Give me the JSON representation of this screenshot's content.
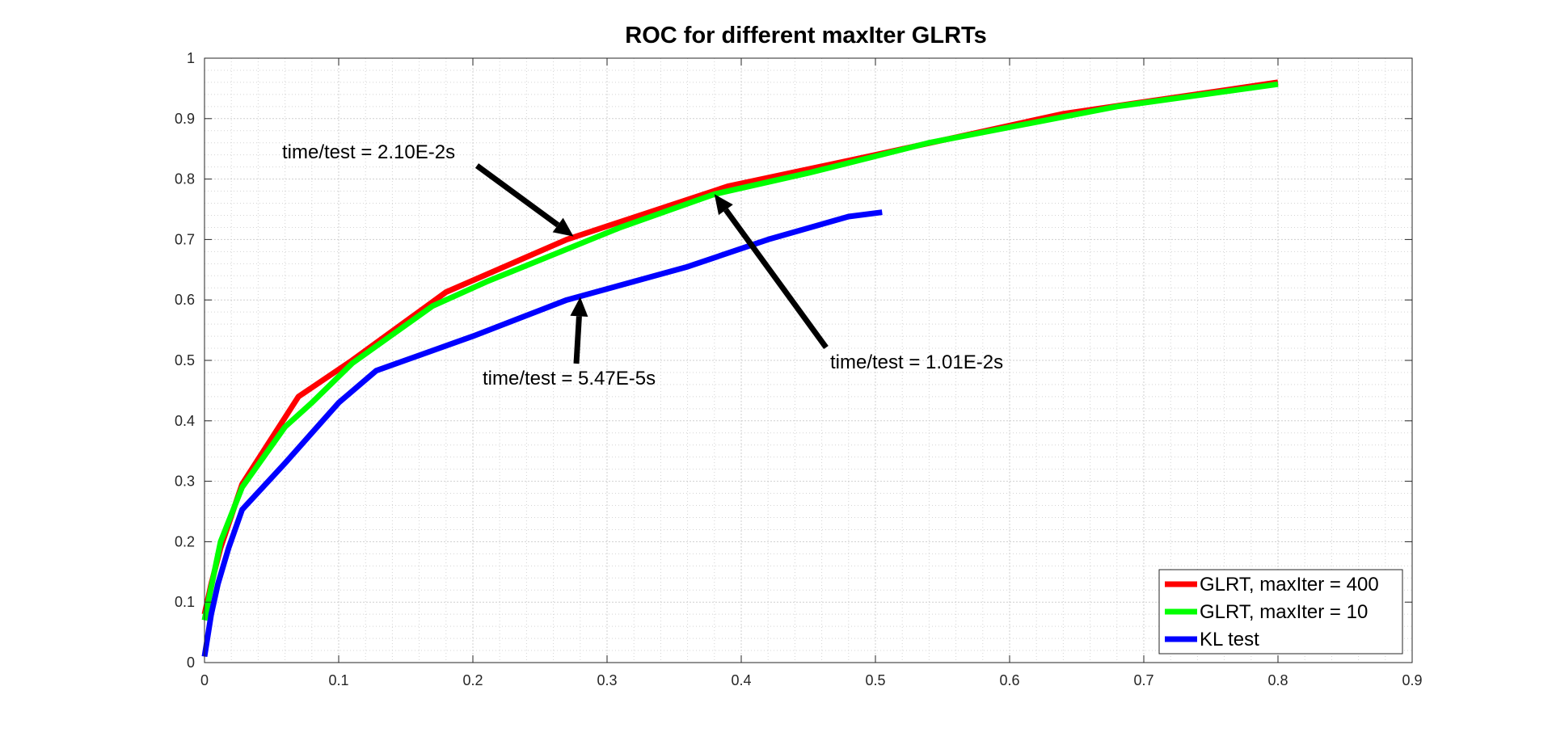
{
  "chart_data": {
    "type": "line",
    "title": "ROC for different maxIter GLRTs",
    "xlabel": "",
    "ylabel": "",
    "xlim": [
      0,
      0.9
    ],
    "ylim": [
      0,
      1
    ],
    "x_ticks": [
      "0",
      "0.1",
      "0.2",
      "0.3",
      "0.4",
      "0.5",
      "0.6",
      "0.7",
      "0.8",
      "0.9"
    ],
    "y_ticks": [
      "0",
      "0.1",
      "0.2",
      "0.3",
      "0.4",
      "0.5",
      "0.6",
      "0.7",
      "0.8",
      "0.9",
      "1"
    ],
    "grid": true,
    "minor_grid": true,
    "legend_position": "bottom-right",
    "series": [
      {
        "name": "GLRT, maxIter = 400",
        "color": "#ff0000",
        "points": [
          [
            0,
            0.08
          ],
          [
            0.005,
            0.13
          ],
          [
            0.012,
            0.19
          ],
          [
            0.028,
            0.295
          ],
          [
            0.07,
            0.44
          ],
          [
            0.11,
            0.5
          ],
          [
            0.18,
            0.613
          ],
          [
            0.27,
            0.7
          ],
          [
            0.39,
            0.788
          ],
          [
            0.5,
            0.84
          ],
          [
            0.64,
            0.908
          ],
          [
            0.8,
            0.96
          ]
        ]
      },
      {
        "name": "GLRT, maxIter = 10",
        "color": "#00ff00",
        "points": [
          [
            0,
            0.07
          ],
          [
            0.005,
            0.125
          ],
          [
            0.012,
            0.2
          ],
          [
            0.028,
            0.29
          ],
          [
            0.06,
            0.39
          ],
          [
            0.08,
            0.43
          ],
          [
            0.11,
            0.495
          ],
          [
            0.17,
            0.59
          ],
          [
            0.21,
            0.63
          ],
          [
            0.31,
            0.72
          ],
          [
            0.38,
            0.775
          ],
          [
            0.45,
            0.81
          ],
          [
            0.54,
            0.86
          ],
          [
            0.68,
            0.92
          ],
          [
            0.8,
            0.957
          ]
        ]
      },
      {
        "name": "KL test",
        "color": "#0000ff",
        "points": [
          [
            0,
            0.01
          ],
          [
            0.005,
            0.08
          ],
          [
            0.01,
            0.13
          ],
          [
            0.018,
            0.19
          ],
          [
            0.028,
            0.253
          ],
          [
            0.06,
            0.33
          ],
          [
            0.1,
            0.43
          ],
          [
            0.128,
            0.483
          ],
          [
            0.2,
            0.54
          ],
          [
            0.27,
            0.6
          ],
          [
            0.36,
            0.655
          ],
          [
            0.42,
            0.7
          ],
          [
            0.48,
            0.738
          ],
          [
            0.505,
            0.745
          ]
        ]
      }
    ],
    "annotations": [
      {
        "text": "time/test = 2.10E-2s",
        "arrow_target": [
          0.275,
          0.705
        ]
      },
      {
        "text": "time/test = 5.47E-5s",
        "arrow_target": [
          0.28,
          0.605
        ]
      },
      {
        "text": "time/test = 1.01E-2s",
        "arrow_target": [
          0.38,
          0.775
        ]
      }
    ]
  }
}
